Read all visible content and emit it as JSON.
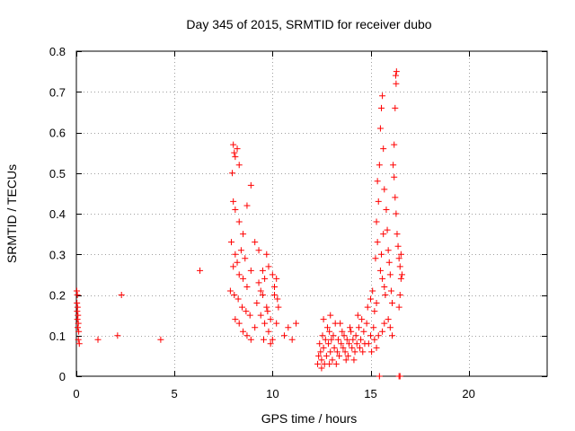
{
  "chart_data": {
    "type": "scatter",
    "title": "Day 345 of 2015, SRMTID for receiver dubo",
    "xlabel": "GPS time / hours",
    "ylabel": "SRMTID / TECUs",
    "xlim": [
      0,
      24
    ],
    "ylim": [
      0,
      0.8
    ],
    "grid": true,
    "xticks": [
      0,
      5,
      10,
      15,
      20
    ],
    "yticks": [
      0,
      0.1,
      0.2,
      0.3,
      0.4,
      0.5,
      0.6,
      0.7,
      0.8
    ],
    "xtick_labels": [
      "0",
      "5",
      "10",
      "15",
      "20"
    ],
    "ytick_labels": [
      "0",
      "0.1",
      "0.2",
      "0.3",
      "0.4",
      "0.5",
      "0.6",
      "0.7",
      "0.8"
    ],
    "marker": "+",
    "marker_color": "#ff0000",
    "series": [
      {
        "name": "SRMTID",
        "points": [
          [
            0.02,
            0.21
          ],
          [
            0.05,
            0.2
          ],
          [
            0.03,
            0.18
          ],
          [
            0.06,
            0.17
          ],
          [
            0.04,
            0.16
          ],
          [
            0.08,
            0.15
          ],
          [
            0.05,
            0.14
          ],
          [
            0.1,
            0.13
          ],
          [
            0.07,
            0.12
          ],
          [
            0.12,
            0.11
          ],
          [
            0.1,
            0.09
          ],
          [
            0.15,
            0.08
          ],
          [
            1.1,
            0.09
          ],
          [
            2.1,
            0.1
          ],
          [
            2.3,
            0.2
          ],
          [
            4.3,
            0.09
          ],
          [
            6.3,
            0.26
          ],
          [
            8.0,
            0.57
          ],
          [
            8.05,
            0.55
          ],
          [
            8.1,
            0.54
          ],
          [
            8.2,
            0.56
          ],
          [
            8.3,
            0.52
          ],
          [
            7.95,
            0.5
          ],
          [
            8.0,
            0.43
          ],
          [
            8.1,
            0.41
          ],
          [
            8.3,
            0.38
          ],
          [
            8.5,
            0.35
          ],
          [
            8.7,
            0.42
          ],
          [
            8.9,
            0.47
          ],
          [
            7.9,
            0.33
          ],
          [
            8.1,
            0.3
          ],
          [
            8.2,
            0.28
          ],
          [
            8.0,
            0.27
          ],
          [
            8.4,
            0.31
          ],
          [
            8.6,
            0.29
          ],
          [
            8.3,
            0.25
          ],
          [
            8.5,
            0.24
          ],
          [
            8.7,
            0.22
          ],
          [
            8.9,
            0.26
          ],
          [
            9.1,
            0.33
          ],
          [
            9.3,
            0.31
          ],
          [
            7.85,
            0.21
          ],
          [
            8.05,
            0.2
          ],
          [
            8.25,
            0.19
          ],
          [
            8.45,
            0.17
          ],
          [
            8.65,
            0.16
          ],
          [
            8.85,
            0.15
          ],
          [
            8.1,
            0.14
          ],
          [
            8.3,
            0.13
          ],
          [
            8.5,
            0.11
          ],
          [
            8.7,
            0.1
          ],
          [
            8.9,
            0.09
          ],
          [
            9.1,
            0.12
          ],
          [
            9.2,
            0.18
          ],
          [
            9.4,
            0.21
          ],
          [
            9.6,
            0.24
          ],
          [
            9.8,
            0.27
          ],
          [
            9.7,
            0.3
          ],
          [
            9.5,
            0.26
          ],
          [
            9.3,
            0.23
          ],
          [
            9.5,
            0.2
          ],
          [
            9.7,
            0.17
          ],
          [
            9.9,
            0.14
          ],
          [
            10.1,
            0.2
          ],
          [
            10.2,
            0.24
          ],
          [
            9.4,
            0.15
          ],
          [
            9.6,
            0.13
          ],
          [
            9.8,
            0.11
          ],
          [
            10.0,
            0.09
          ],
          [
            9.9,
            0.08
          ],
          [
            10.3,
            0.17
          ],
          [
            10.1,
            0.22
          ],
          [
            10.25,
            0.19
          ],
          [
            10.0,
            0.25
          ],
          [
            9.75,
            0.16
          ],
          [
            9.55,
            0.09
          ],
          [
            10.2,
            0.13
          ],
          [
            10.6,
            0.1
          ],
          [
            10.8,
            0.12
          ],
          [
            11.0,
            0.09
          ],
          [
            11.2,
            0.13
          ],
          [
            12.3,
            0.03
          ],
          [
            12.35,
            0.05
          ],
          [
            12.4,
            0.08
          ],
          [
            12.45,
            0.06
          ],
          [
            12.5,
            0.04
          ],
          [
            12.55,
            0.1
          ],
          [
            12.6,
            0.07
          ],
          [
            12.7,
            0.09
          ],
          [
            12.75,
            0.05
          ],
          [
            12.8,
            0.12
          ],
          [
            12.85,
            0.08
          ],
          [
            12.9,
            0.11
          ],
          [
            12.95,
            0.06
          ],
          [
            13.0,
            0.09
          ],
          [
            13.05,
            0.04
          ],
          [
            13.1,
            0.1
          ],
          [
            13.15,
            0.07
          ],
          [
            13.2,
            0.13
          ],
          [
            13.3,
            0.06
          ],
          [
            13.35,
            0.09
          ],
          [
            13.4,
            0.05
          ],
          [
            13.5,
            0.08
          ],
          [
            13.55,
            0.11
          ],
          [
            13.6,
            0.07
          ],
          [
            13.65,
            0.1
          ],
          [
            13.7,
            0.06
          ],
          [
            13.8,
            0.09
          ],
          [
            13.85,
            0.05
          ],
          [
            13.9,
            0.08
          ],
          [
            14.0,
            0.11
          ],
          [
            14.05,
            0.07
          ],
          [
            14.1,
            0.09
          ],
          [
            14.2,
            0.06
          ],
          [
            14.25,
            0.1
          ],
          [
            14.3,
            0.08
          ],
          [
            14.4,
            0.12
          ],
          [
            14.45,
            0.07
          ],
          [
            14.5,
            0.09
          ],
          [
            14.6,
            0.06
          ],
          [
            14.65,
            0.11
          ],
          [
            14.7,
            0.08
          ],
          [
            14.8,
            0.13
          ],
          [
            12.5,
            0.02
          ],
          [
            12.65,
            0.03
          ],
          [
            12.9,
            0.03
          ],
          [
            13.25,
            0.03
          ],
          [
            13.75,
            0.04
          ],
          [
            14.15,
            0.04
          ],
          [
            12.6,
            0.14
          ],
          [
            12.95,
            0.15
          ],
          [
            13.45,
            0.13
          ],
          [
            13.95,
            0.12
          ],
          [
            14.35,
            0.15
          ],
          [
            14.55,
            0.14
          ],
          [
            14.9,
            0.08
          ],
          [
            15.0,
            0.1
          ],
          [
            15.05,
            0.06
          ],
          [
            15.15,
            0.12
          ],
          [
            15.2,
            0.09
          ],
          [
            15.3,
            0.07
          ],
          [
            14.85,
            0.17
          ],
          [
            15.0,
            0.19
          ],
          [
            15.1,
            0.21
          ],
          [
            15.2,
            0.16
          ],
          [
            15.3,
            0.18
          ],
          [
            15.25,
            0.29
          ],
          [
            15.35,
            0.33
          ],
          [
            15.3,
            0.38
          ],
          [
            15.4,
            0.43
          ],
          [
            15.35,
            0.48
          ],
          [
            15.45,
            0.52
          ],
          [
            15.5,
            0.26
          ],
          [
            15.6,
            0.24
          ],
          [
            15.55,
            0.3
          ],
          [
            15.65,
            0.35
          ],
          [
            15.7,
            0.22
          ],
          [
            15.75,
            0.2
          ],
          [
            15.5,
            0.61
          ],
          [
            15.55,
            0.66
          ],
          [
            15.6,
            0.69
          ],
          [
            15.65,
            0.56
          ],
          [
            15.7,
            0.46
          ],
          [
            15.8,
            0.41
          ],
          [
            15.85,
            0.36
          ],
          [
            15.9,
            0.31
          ],
          [
            15.95,
            0.28
          ],
          [
            16.0,
            0.25
          ],
          [
            16.05,
            0.21
          ],
          [
            16.1,
            0.18
          ],
          [
            16.15,
            0.52
          ],
          [
            16.2,
            0.57
          ],
          [
            16.25,
            0.66
          ],
          [
            16.3,
            0.72
          ],
          [
            16.28,
            0.74
          ],
          [
            16.32,
            0.75
          ],
          [
            16.2,
            0.49
          ],
          [
            16.25,
            0.44
          ],
          [
            16.3,
            0.4
          ],
          [
            16.35,
            0.35
          ],
          [
            16.4,
            0.32
          ],
          [
            16.45,
            0.29
          ],
          [
            16.5,
            0.27
          ],
          [
            16.55,
            0.24
          ],
          [
            16.5,
            0.2
          ],
          [
            16.45,
            0.17
          ],
          [
            16.55,
            0.3
          ],
          [
            16.6,
            0.25
          ],
          [
            15.9,
            0.14
          ],
          [
            16.0,
            0.12
          ],
          [
            16.1,
            0.1
          ],
          [
            15.7,
            0.13
          ],
          [
            15.6,
            0.11
          ],
          [
            15.4,
            0.1
          ],
          [
            15.45,
            0.0
          ],
          [
            16.45,
            0.0
          ],
          [
            16.5,
            0.0
          ]
        ]
      }
    ]
  }
}
